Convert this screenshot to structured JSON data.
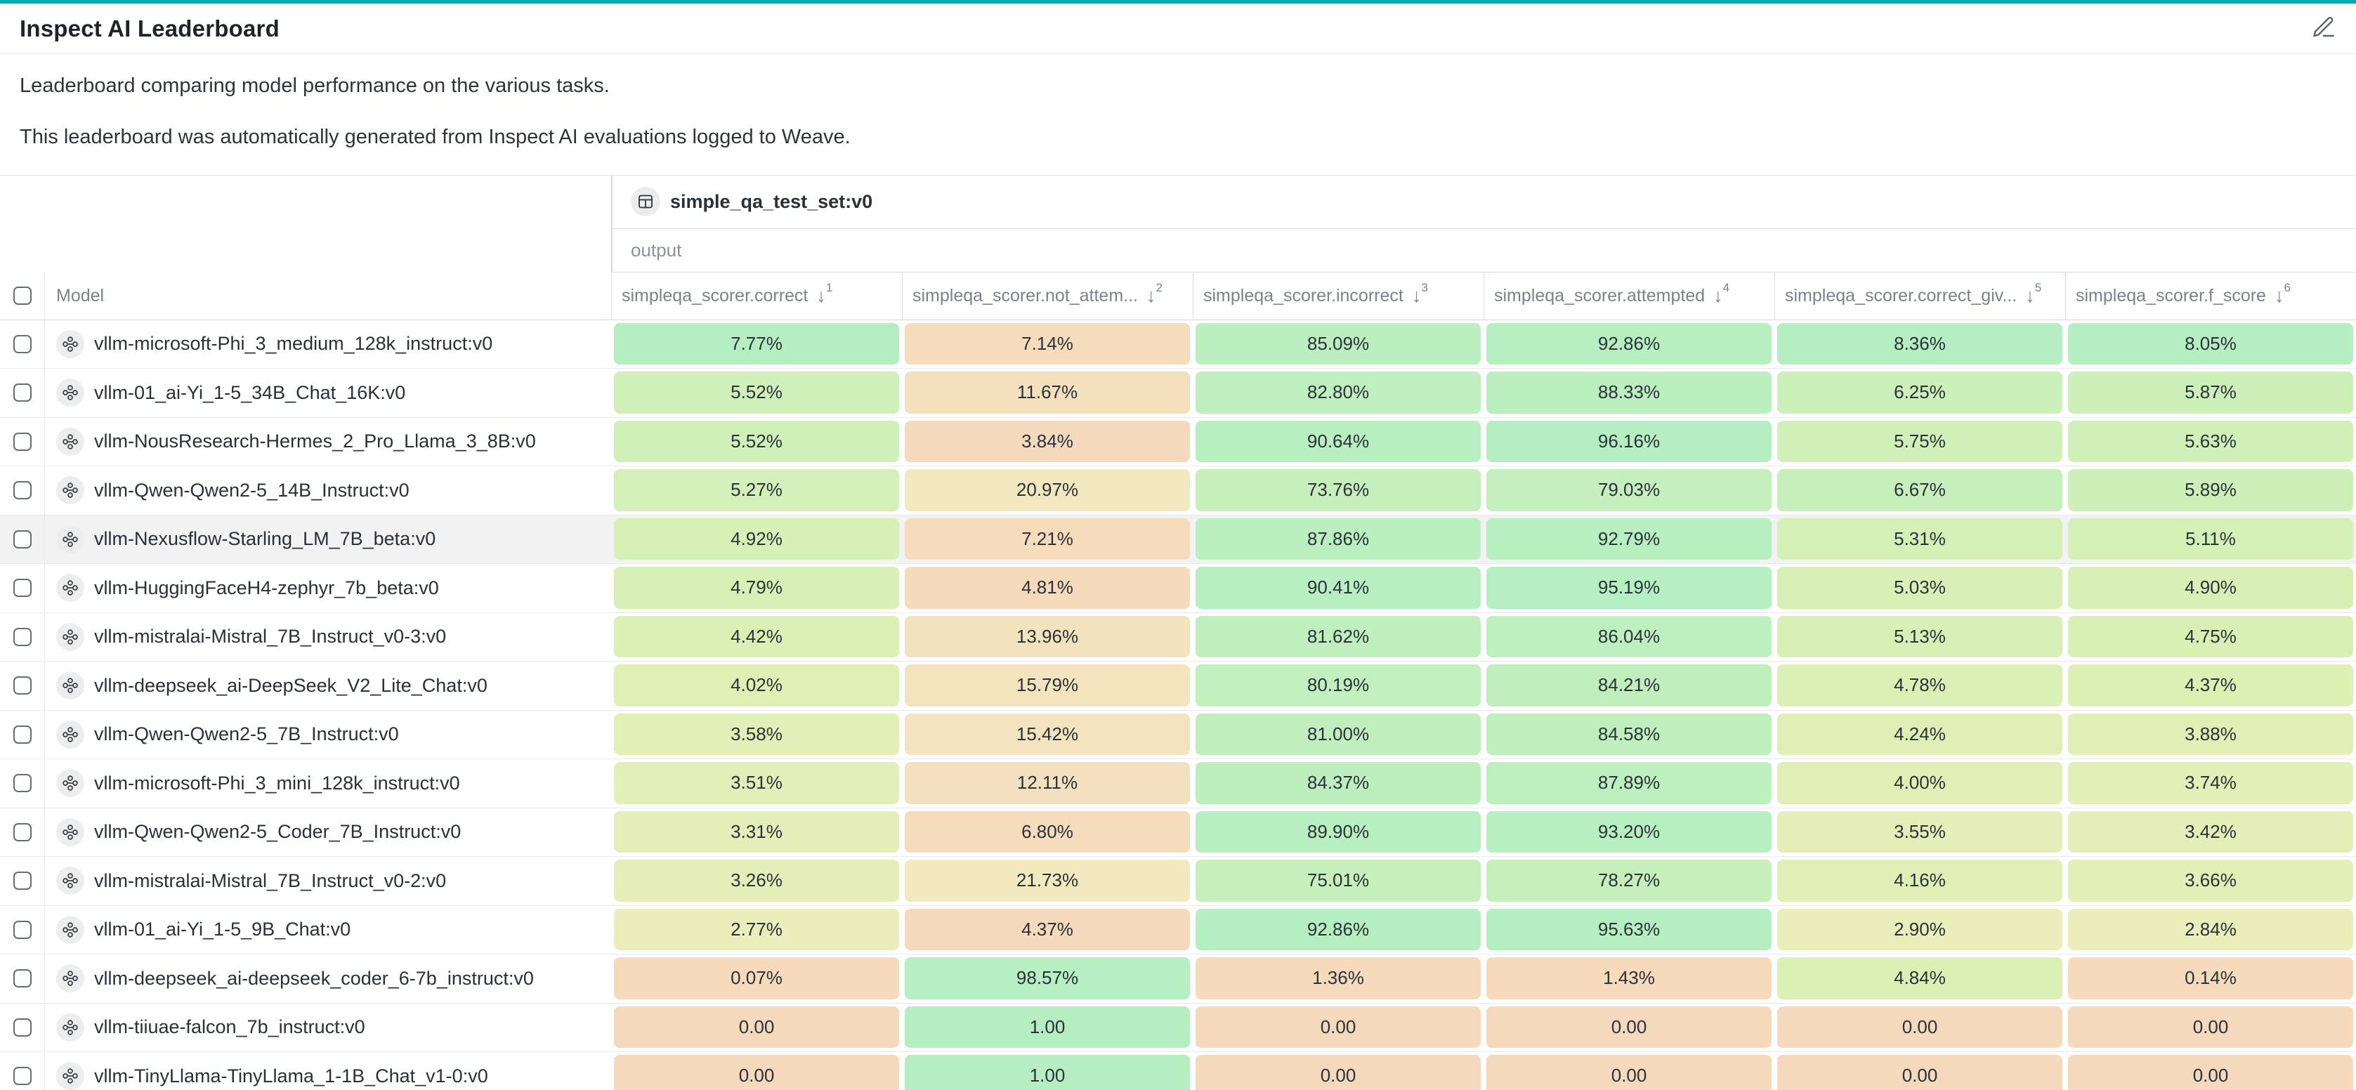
{
  "page": {
    "title": "Inspect AI Leaderboard",
    "description_lines": [
      "Leaderboard comparing model performance on the various tasks.",
      "This leaderboard was automatically generated from Inspect AI evaluations logged to Weave."
    ]
  },
  "table": {
    "dataset_group": "simple_qa_test_set:v0",
    "output_label": "output",
    "model_column_label": "Model",
    "sort_arrow": "↓",
    "columns": [
      {
        "label": "simpleqa_scorer.correct",
        "sort_order": 1
      },
      {
        "label": "simpleqa_scorer.not_attem...",
        "sort_order": 2
      },
      {
        "label": "simpleqa_scorer.incorrect",
        "sort_order": 3
      },
      {
        "label": "simpleqa_scorer.attempted",
        "sort_order": 4
      },
      {
        "label": "simpleqa_scorer.correct_giv...",
        "sort_order": 5
      },
      {
        "label": "simpleqa_scorer.f_score",
        "sort_order": 6
      }
    ],
    "color_scale": {
      "stops": [
        {
          "t": 0.0,
          "color": "#f5d9bc"
        },
        {
          "t": 0.22,
          "color": "#f1ecc0"
        },
        {
          "t": 0.55,
          "color": "#ddf0b4"
        },
        {
          "t": 1.0,
          "color": "#b5efc1"
        }
      ]
    },
    "rows": [
      {
        "model": "vllm-microsoft-Phi_3_medium_128k_instruct:v0",
        "highlighted": false,
        "values": [
          7.77,
          7.14,
          85.09,
          92.86,
          8.36,
          8.05
        ],
        "display": [
          "7.77%",
          "7.14%",
          "85.09%",
          "92.86%",
          "8.36%",
          "8.05%"
        ]
      },
      {
        "model": "vllm-01_ai-Yi_1-5_34B_Chat_16K:v0",
        "highlighted": false,
        "values": [
          5.52,
          11.67,
          82.8,
          88.33,
          6.25,
          5.87
        ],
        "display": [
          "5.52%",
          "11.67%",
          "82.80%",
          "88.33%",
          "6.25%",
          "5.87%"
        ]
      },
      {
        "model": "vllm-NousResearch-Hermes_2_Pro_Llama_3_8B:v0",
        "highlighted": false,
        "values": [
          5.52,
          3.84,
          90.64,
          96.16,
          5.75,
          5.63
        ],
        "display": [
          "5.52%",
          "3.84%",
          "90.64%",
          "96.16%",
          "5.75%",
          "5.63%"
        ]
      },
      {
        "model": "vllm-Qwen-Qwen2-5_14B_Instruct:v0",
        "highlighted": false,
        "values": [
          5.27,
          20.97,
          73.76,
          79.03,
          6.67,
          5.89
        ],
        "display": [
          "5.27%",
          "20.97%",
          "73.76%",
          "79.03%",
          "6.67%",
          "5.89%"
        ]
      },
      {
        "model": "vllm-Nexusflow-Starling_LM_7B_beta:v0",
        "highlighted": true,
        "values": [
          4.92,
          7.21,
          87.86,
          92.79,
          5.31,
          5.11
        ],
        "display": [
          "4.92%",
          "7.21%",
          "87.86%",
          "92.79%",
          "5.31%",
          "5.11%"
        ]
      },
      {
        "model": "vllm-HuggingFaceH4-zephyr_7b_beta:v0",
        "highlighted": false,
        "values": [
          4.79,
          4.81,
          90.41,
          95.19,
          5.03,
          4.9
        ],
        "display": [
          "4.79%",
          "4.81%",
          "90.41%",
          "95.19%",
          "5.03%",
          "4.90%"
        ]
      },
      {
        "model": "vllm-mistralai-Mistral_7B_Instruct_v0-3:v0",
        "highlighted": false,
        "values": [
          4.42,
          13.96,
          81.62,
          86.04,
          5.13,
          4.75
        ],
        "display": [
          "4.42%",
          "13.96%",
          "81.62%",
          "86.04%",
          "5.13%",
          "4.75%"
        ]
      },
      {
        "model": "vllm-deepseek_ai-DeepSeek_V2_Lite_Chat:v0",
        "highlighted": false,
        "values": [
          4.02,
          15.79,
          80.19,
          84.21,
          4.78,
          4.37
        ],
        "display": [
          "4.02%",
          "15.79%",
          "80.19%",
          "84.21%",
          "4.78%",
          "4.37%"
        ]
      },
      {
        "model": "vllm-Qwen-Qwen2-5_7B_Instruct:v0",
        "highlighted": false,
        "values": [
          3.58,
          15.42,
          81.0,
          84.58,
          4.24,
          3.88
        ],
        "display": [
          "3.58%",
          "15.42%",
          "81.00%",
          "84.58%",
          "4.24%",
          "3.88%"
        ]
      },
      {
        "model": "vllm-microsoft-Phi_3_mini_128k_instruct:v0",
        "highlighted": false,
        "values": [
          3.51,
          12.11,
          84.37,
          87.89,
          4.0,
          3.74
        ],
        "display": [
          "3.51%",
          "12.11%",
          "84.37%",
          "87.89%",
          "4.00%",
          "3.74%"
        ]
      },
      {
        "model": "vllm-Qwen-Qwen2-5_Coder_7B_Instruct:v0",
        "highlighted": false,
        "values": [
          3.31,
          6.8,
          89.9,
          93.2,
          3.55,
          3.42
        ],
        "display": [
          "3.31%",
          "6.80%",
          "89.90%",
          "93.20%",
          "3.55%",
          "3.42%"
        ]
      },
      {
        "model": "vllm-mistralai-Mistral_7B_Instruct_v0-2:v0",
        "highlighted": false,
        "values": [
          3.26,
          21.73,
          75.01,
          78.27,
          4.16,
          3.66
        ],
        "display": [
          "3.26%",
          "21.73%",
          "75.01%",
          "78.27%",
          "4.16%",
          "3.66%"
        ]
      },
      {
        "model": "vllm-01_ai-Yi_1-5_9B_Chat:v0",
        "highlighted": false,
        "values": [
          2.77,
          4.37,
          92.86,
          95.63,
          2.9,
          2.84
        ],
        "display": [
          "2.77%",
          "4.37%",
          "92.86%",
          "95.63%",
          "2.90%",
          "2.84%"
        ]
      },
      {
        "model": "vllm-deepseek_ai-deepseek_coder_6-7b_instruct:v0",
        "highlighted": false,
        "values": [
          0.07,
          98.57,
          1.36,
          1.43,
          4.84,
          0.14
        ],
        "display": [
          "0.07%",
          "98.57%",
          "1.36%",
          "1.43%",
          "4.84%",
          "0.14%"
        ]
      },
      {
        "model": "vllm-tiiuae-falcon_7b_instruct:v0",
        "highlighted": false,
        "values": [
          0,
          100,
          0,
          0,
          0,
          0
        ],
        "display": [
          "0.00",
          "1.00",
          "0.00",
          "0.00",
          "0.00",
          "0.00"
        ]
      },
      {
        "model": "vllm-TinyLlama-TinyLlama_1-1B_Chat_v1-0:v0",
        "highlighted": false,
        "values": [
          0,
          100,
          0,
          0,
          0,
          0
        ],
        "display": [
          "0.00",
          "1.00",
          "0.00",
          "0.00",
          "0.00",
          "0.00"
        ]
      }
    ]
  }
}
